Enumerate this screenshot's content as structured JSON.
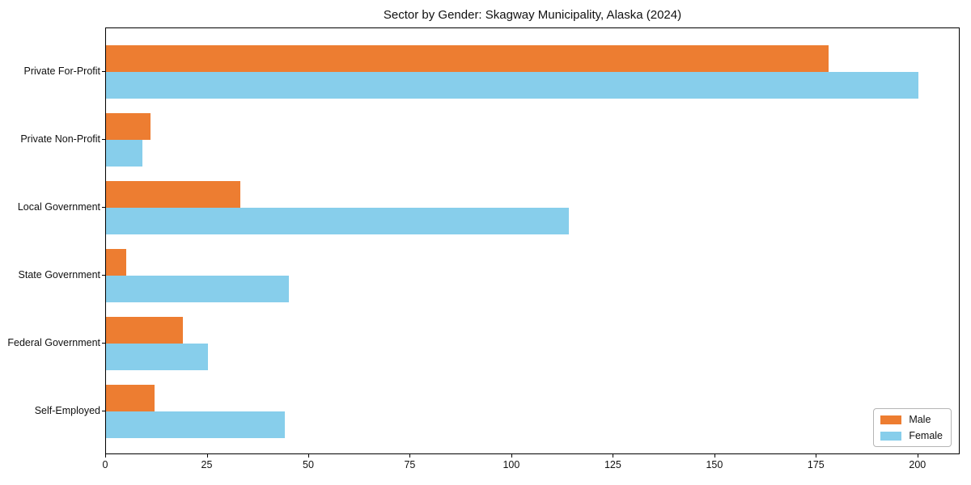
{
  "title": "Sector by Gender: Skagway Municipality, Alaska (2024)",
  "chart_data": {
    "type": "bar",
    "orientation": "horizontal",
    "title": "Sector by Gender: Skagway Municipality, Alaska (2024)",
    "categories": [
      "Private For-Profit",
      "Private Non-Profit",
      "Local Government",
      "State Government",
      "Federal Government",
      "Self-Employed"
    ],
    "series": [
      {
        "name": "Male",
        "color": "#ed7d31",
        "values": [
          178,
          11,
          33,
          5,
          19,
          12
        ]
      },
      {
        "name": "Female",
        "color": "#87ceeb",
        "values": [
          200,
          9,
          114,
          45,
          25,
          44
        ]
      }
    ],
    "xlabel": "",
    "ylabel": "",
    "xlim": [
      0,
      210.4
    ],
    "xticks": [
      0,
      25,
      50,
      75,
      100,
      125,
      150,
      175,
      200
    ],
    "grid": false,
    "legend_position": "lower right"
  }
}
